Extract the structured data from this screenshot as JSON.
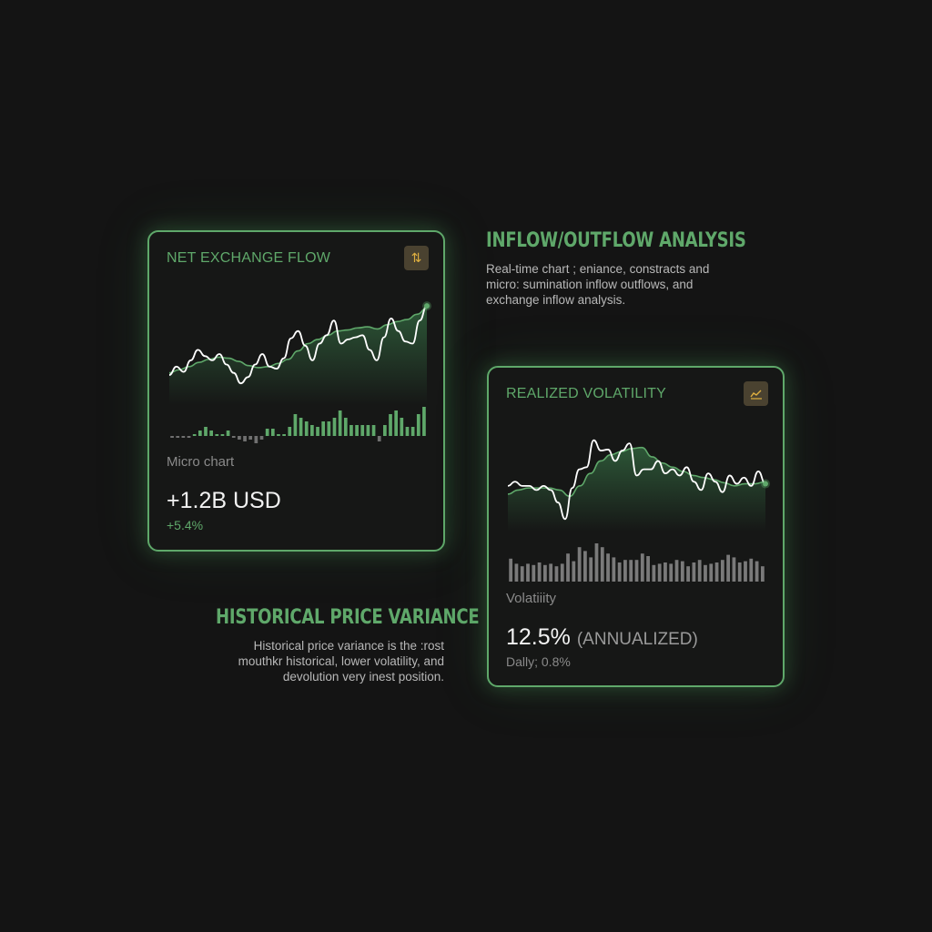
{
  "colors": {
    "accent": "#5fa86a",
    "icon": "#e0b040",
    "line": "#ffffff",
    "bar_neutral": "#707070"
  },
  "inflow_section": {
    "heading": "INFLOW/OUTFLOW ANALYSIS",
    "description_lines": [
      "Real-time chart ; eniance, constracts and",
      "micro: sumination inflow outflows, and",
      "exchange inflow analysis."
    ]
  },
  "variance_section": {
    "heading": "HISTORICAL PRICE VARIANCE",
    "description_lines": [
      "Historical price variance is the :rost",
      "mouthkr historical, lower volatility, and",
      "devolution very inest position."
    ]
  },
  "net_flow_card": {
    "title": "NET EXCHANGE FLOW",
    "icon": "arrows-up-down-icon",
    "subtitle": "Micro chart",
    "value": "+1.2B USD",
    "change": "+5.4%",
    "price_series": [
      20,
      28,
      23,
      34,
      44,
      38,
      34,
      40,
      30,
      22,
      12,
      18,
      30,
      40,
      28,
      26,
      36,
      55,
      62,
      48,
      34,
      50,
      58,
      72,
      50,
      54,
      56,
      58,
      44,
      34,
      56,
      74,
      62,
      52,
      50,
      72,
      86
    ],
    "average_series": [
      22,
      25,
      28,
      32,
      35,
      37,
      36,
      33,
      29,
      27,
      28,
      31,
      35,
      43,
      50,
      54,
      58,
      62,
      63,
      65,
      66,
      64,
      68,
      71,
      73,
      78,
      84
    ],
    "flow_bars": [
      -1,
      -1,
      -1,
      -1,
      1,
      3,
      5,
      3,
      1,
      1,
      3,
      -1,
      -2,
      -3,
      -2,
      -4,
      -2,
      4,
      4,
      1,
      1,
      5,
      12,
      10,
      8,
      6,
      5,
      8,
      8,
      10,
      14,
      10,
      6,
      6,
      6,
      6,
      6,
      -3,
      6,
      12,
      14,
      10,
      5,
      5,
      12,
      16
    ]
  },
  "volatility_card": {
    "title": "REALIZED VOLATILITY",
    "icon": "line-chart-icon",
    "subtitle": "Volatiiity",
    "value": "12.5%",
    "value_unit": "(ANNUALIZED)",
    "daily": "Dally; 0.8%",
    "price_series": [
      44,
      48,
      44,
      44,
      40,
      44,
      40,
      28,
      12,
      42,
      60,
      62,
      88,
      78,
      79,
      68,
      78,
      85,
      54,
      60,
      60,
      68,
      56,
      60,
      54,
      62,
      48,
      40,
      56,
      48,
      38,
      54,
      46,
      52,
      44,
      58,
      46
    ],
    "average_series": [
      36,
      40,
      42,
      42,
      42,
      40,
      34,
      44,
      56,
      68,
      74,
      77,
      80,
      81,
      72,
      66,
      62,
      58,
      54,
      52,
      50,
      47,
      44,
      46,
      46,
      48
    ],
    "vol_bars": [
      18,
      14,
      12,
      14,
      13,
      15,
      13,
      14,
      12,
      14,
      22,
      16,
      27,
      24,
      19,
      30,
      27,
      22,
      19,
      15,
      17,
      17,
      17,
      22,
      20,
      13,
      14,
      15,
      14,
      17,
      16,
      12,
      15,
      17,
      13,
      14,
      15,
      17,
      21,
      19,
      15,
      16,
      18,
      16,
      12
    ]
  }
}
